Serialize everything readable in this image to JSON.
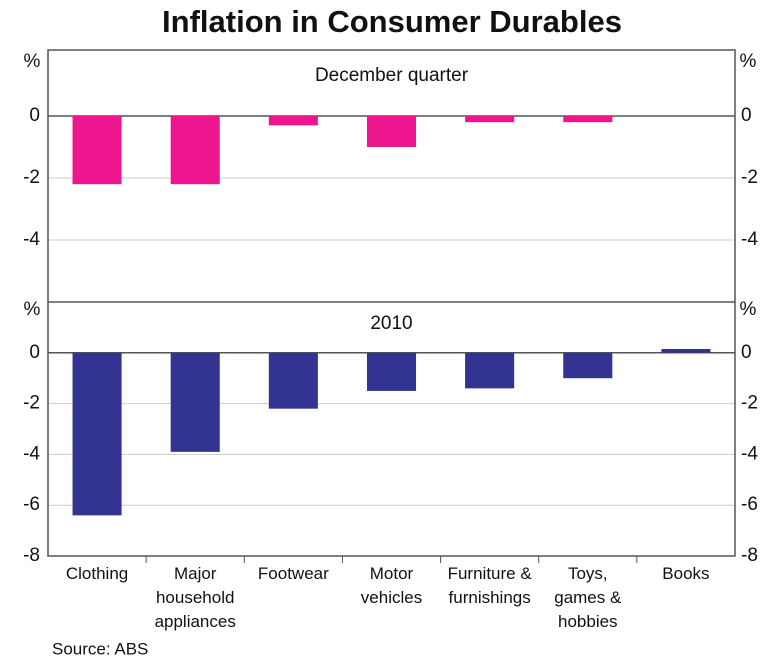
{
  "chart_data": {
    "type": "bar",
    "title": "Inflation in Consumer Durables",
    "source": "Source: ABS",
    "categories": [
      "Clothing",
      "Major\nhousehold\nappliances",
      "Footwear",
      "Motor\nvehicles",
      "Furniture &\nfurnishings",
      "Toys,\ngames &\nhobbies",
      "Books"
    ],
    "grid": true,
    "panels": [
      {
        "subtitle": "December quarter",
        "unit": "%",
        "ylim": [
          -6,
          2
        ],
        "yticks": [
          0,
          -2,
          -4
        ],
        "series": [
          {
            "color": "#ee168f",
            "values": [
              -2.2,
              -2.2,
              -0.3,
              -1.0,
              -0.2,
              -0.2,
              null
            ]
          }
        ]
      },
      {
        "subtitle": "2010",
        "unit": "%",
        "ylim": [
          -8,
          2
        ],
        "yticks": [
          0,
          -2,
          -4,
          -6,
          -8
        ],
        "series": [
          {
            "color": "#333391",
            "values": [
              -6.4,
              -3.9,
              -2.2,
              -1.5,
              -1.4,
              -1.0,
              0.15
            ]
          }
        ]
      }
    ]
  }
}
